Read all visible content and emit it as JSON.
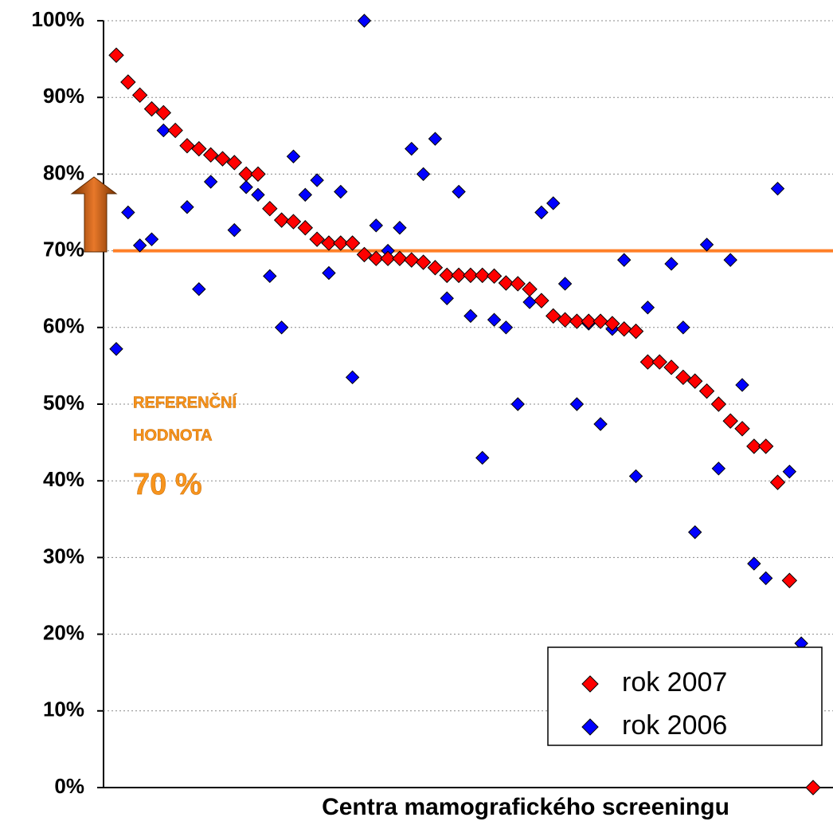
{
  "chart_data": {
    "type": "scatter",
    "x_label": "Centra mamografického screeningu",
    "categories": [
      null,
      null,
      null,
      null,
      null,
      null,
      null,
      null,
      null,
      null,
      null,
      null,
      null,
      null,
      null,
      null,
      null,
      null,
      null,
      null,
      null,
      null,
      null,
      null,
      null,
      null,
      null,
      null,
      null,
      null,
      null,
      null,
      null,
      null,
      null,
      null,
      null,
      null,
      null,
      null,
      null,
      null,
      null,
      null,
      null,
      null,
      null,
      null,
      null,
      null,
      null,
      null,
      null,
      null,
      null,
      null,
      null,
      null,
      null,
      null
    ],
    "series": [
      {
        "name": "rok 2007",
        "color": "#ff0000",
        "values": [
          95.5,
          92,
          90.3,
          88.5,
          88,
          85.7,
          83.7,
          83.3,
          82.5,
          82,
          81.5,
          80,
          80,
          75.5,
          74,
          73.8,
          73,
          71.5,
          71,
          71,
          71,
          69.5,
          69,
          69,
          69,
          68.8,
          68.5,
          67.8,
          66.8,
          66.8,
          66.8,
          66.8,
          66.7,
          65.8,
          65.7,
          65,
          63.5,
          61.5,
          61,
          60.8,
          60.8,
          60.8,
          60.5,
          59.8,
          59.5,
          55.5,
          55.5,
          54.8,
          53.5,
          53,
          51.7,
          50,
          47.8,
          46.8,
          44.5,
          44.5,
          39.8,
          27,
          null,
          0
        ]
      },
      {
        "name": "rok 2006",
        "color": "#0000ff",
        "values": [
          57.2,
          75,
          70.7,
          71.5,
          85.7,
          null,
          75.7,
          65,
          79,
          null,
          72.7,
          78.3,
          77.3,
          66.7,
          60,
          82.3,
          77.3,
          79.2,
          67.1,
          77.7,
          53.5,
          100,
          73.3,
          70,
          73,
          83.3,
          80,
          84.6,
          63.8,
          77.7,
          61.5,
          43,
          61,
          60,
          50,
          63.3,
          75,
          76.2,
          65.7,
          50,
          60.5,
          47.4,
          59.8,
          68.8,
          40.6,
          62.6,
          null,
          68.3,
          60,
          33.3,
          70.8,
          41.6,
          68.8,
          52.5,
          29.2,
          27.3,
          78.1,
          41.2,
          18.8,
          null
        ]
      }
    ],
    "ylim": [
      0,
      100
    ],
    "yticks": [
      {
        "value": 0,
        "label": "0%"
      },
      {
        "value": 10,
        "label": "10%"
      },
      {
        "value": 20,
        "label": "20%"
      },
      {
        "value": 30,
        "label": "30%"
      },
      {
        "value": 40,
        "label": "40%"
      },
      {
        "value": 50,
        "label": "50%"
      },
      {
        "value": 60,
        "label": "60%"
      },
      {
        "value": 70,
        "label": "70%"
      },
      {
        "value": 80,
        "label": "80%"
      },
      {
        "value": 90,
        "label": "90%"
      },
      {
        "value": 100,
        "label": "100%"
      }
    ],
    "grid": true,
    "legend": "lower right",
    "reference_line": {
      "value": 70,
      "color": "#ff7f27"
    },
    "annotations": [
      "REFERENČNÍ",
      "HODNOTA",
      "70 %"
    ]
  }
}
